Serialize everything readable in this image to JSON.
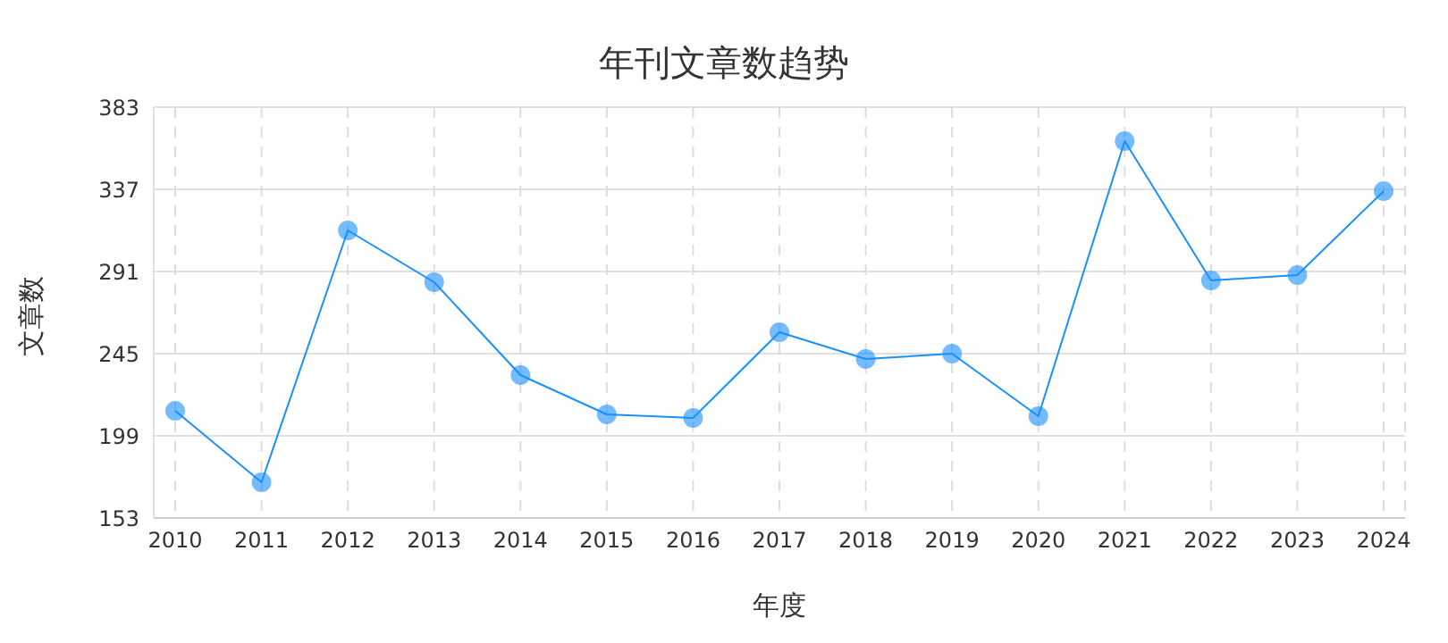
{
  "chart_data": {
    "type": "line",
    "title": "年刊文章数趋势",
    "xlabel": "年度",
    "ylabel": "文章数",
    "categories": [
      "2010",
      "2011",
      "2012",
      "2013",
      "2014",
      "2015",
      "2016",
      "2017",
      "2018",
      "2019",
      "2020",
      "2021",
      "2022",
      "2023",
      "2024"
    ],
    "series": [
      {
        "color": "#1890ff",
        "values": [
          213,
          173,
          314,
          285,
          233,
          211,
          209,
          257,
          242,
          245,
          210,
          364,
          286,
          289,
          336
        ]
      }
    ],
    "ylim": [
      153,
      383
    ],
    "yticks": [
      153,
      199,
      245,
      291,
      337,
      383
    ],
    "grid": true,
    "marker": "circle",
    "line_style": "solid"
  }
}
